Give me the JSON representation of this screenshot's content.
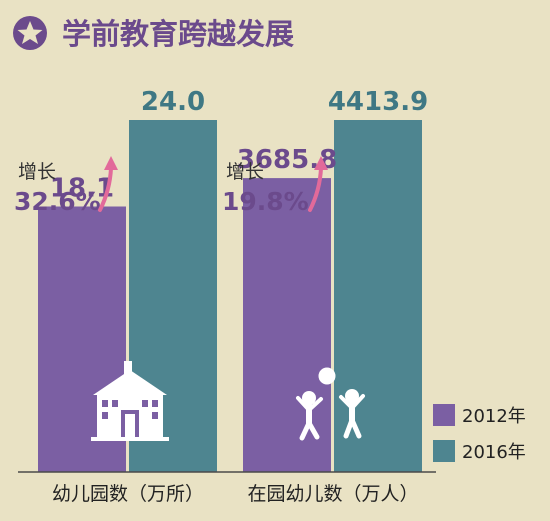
{
  "title": "学前教育跨越发展",
  "colors": {
    "background": "#e9e2c4",
    "title": "#6b4a8c",
    "series_2012": "#7b5fa3",
    "series_2016": "#4e8590",
    "growth_arrow": "#e26a9a",
    "value_2012": "#6b4a8c",
    "value_2016": "#3f7884",
    "growth_pct": "#6b4a8c",
    "axis": "#4a4a4a"
  },
  "icons": [
    "star-badge-icon",
    "kindergarten-building-icon",
    "children-playing-ball-icon",
    "growth-arrow-icon"
  ],
  "chart_data": [
    {
      "type": "bar",
      "category": "幼儿园数（万所）",
      "series": [
        {
          "name": "2012年",
          "value": 18.1,
          "label": "18.1"
        },
        {
          "name": "2016年",
          "value": 24.0,
          "label": "24.0"
        }
      ],
      "growth_label": "增长",
      "growth_value": "32.6%"
    },
    {
      "type": "bar",
      "category": "在园幼儿数（万人）",
      "series": [
        {
          "name": "2012年",
          "value": 3685.8,
          "label": "3685.8"
        },
        {
          "name": "2016年",
          "value": 4413.9,
          "label": "4413.9"
        }
      ],
      "growth_label": "增长",
      "growth_value": "19.8%"
    }
  ],
  "legend": [
    {
      "label": "2012年"
    },
    {
      "label": "2016年"
    }
  ]
}
